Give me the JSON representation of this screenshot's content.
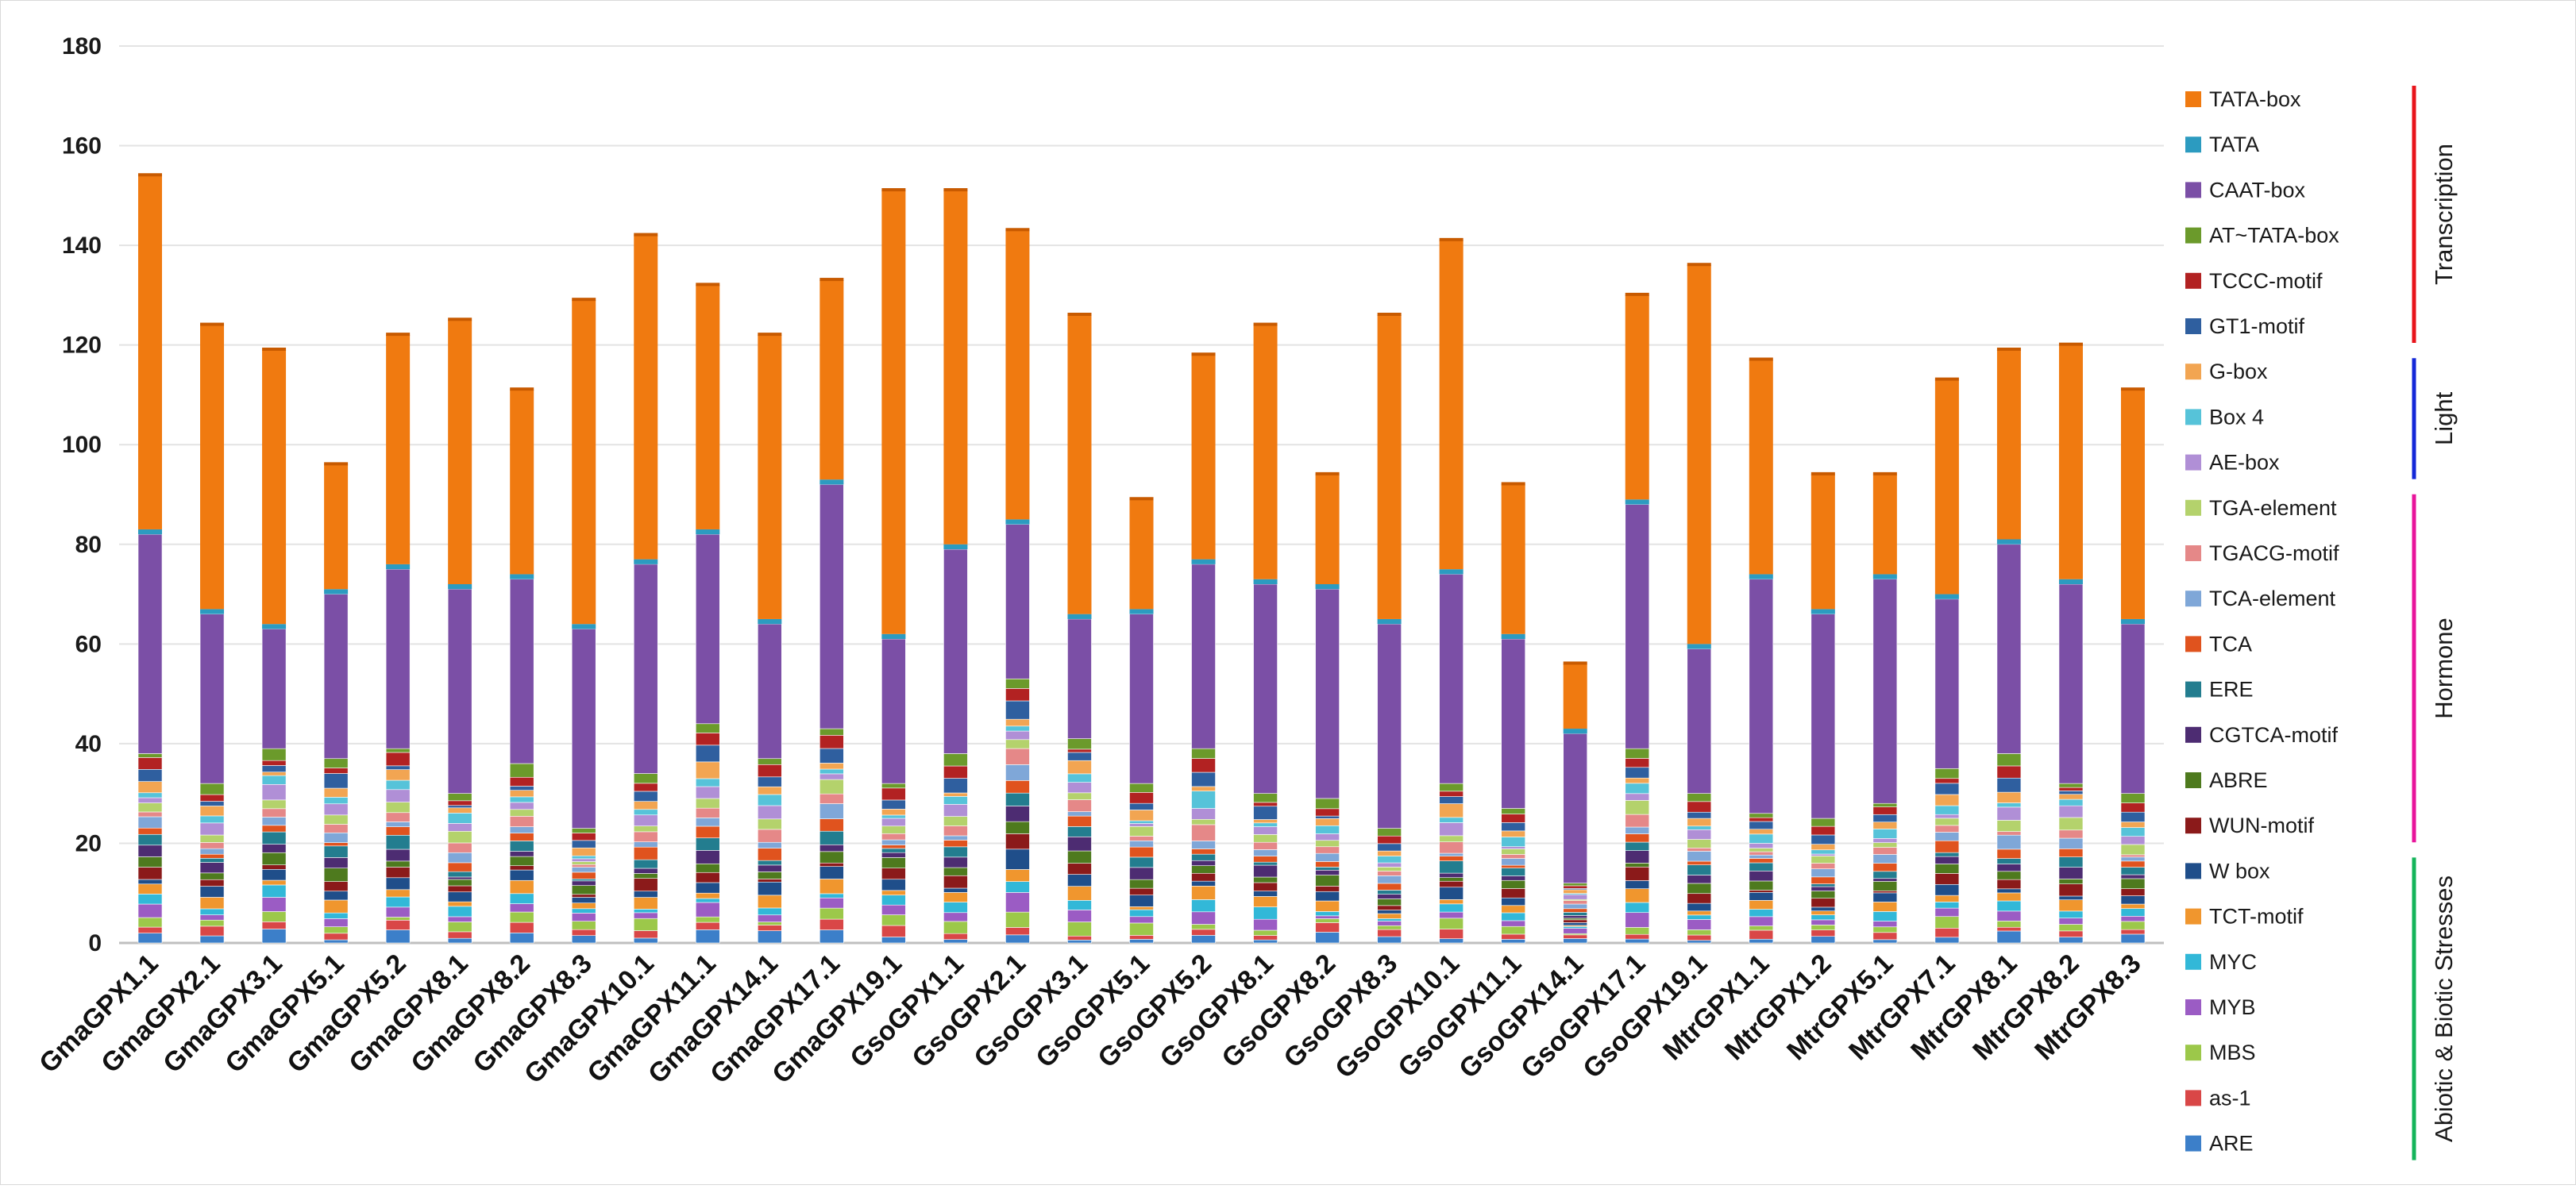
{
  "chart_data": {
    "type": "bar",
    "stacked": true,
    "ylim": [
      0,
      180
    ],
    "yticks": [
      0,
      20,
      40,
      60,
      80,
      100,
      120,
      140,
      160,
      180
    ],
    "categories": [
      "GmaGPX1.1",
      "GmaGPX2.1",
      "GmaGPX3.1",
      "GmaGPX5.1",
      "GmaGPX5.2",
      "GmaGPX8.1",
      "GmaGPX8.2",
      "GmaGPX8.3",
      "GmaGPX10.1",
      "GmaGPX11.1",
      "GmaGPX14.1",
      "GmaGPX17.1",
      "GmaGPX19.1",
      "GsoGPX1.1",
      "GsoGPX2.1",
      "GsoGPX3.1",
      "GsoGPX5.1",
      "GsoGPX5.2",
      "GsoGPX8.1",
      "GsoGPX8.2",
      "GsoGPX8.3",
      "GsoGPX10.1",
      "GsoGPX11.1",
      "GsoGPX14.1",
      "GsoGPX17.1",
      "GsoGPX19.1",
      "MtrGPX1.1",
      "MtrGPX1.2",
      "MtrGPX5.1",
      "MtrGPX7.1",
      "MtrGPX8.1",
      "MtrGPX8.2",
      "MtrGPX8.3"
    ],
    "totals": [
      154,
      124,
      119,
      96,
      122,
      125,
      111,
      129,
      142,
      132,
      122,
      133,
      151,
      151,
      143,
      126,
      89,
      118,
      124,
      94,
      126,
      141,
      92,
      56,
      130,
      136,
      117,
      94,
      94,
      113,
      119,
      120,
      111
    ],
    "caat_tops": [
      83,
      67,
      64,
      71,
      76,
      72,
      74,
      64,
      77,
      83,
      65,
      93,
      62,
      80,
      85,
      66,
      67,
      77,
      73,
      72,
      65,
      75,
      62,
      43,
      89,
      60,
      74,
      67,
      74,
      70,
      81,
      73,
      65
    ],
    "caat_bottoms": [
      38,
      32,
      39,
      37,
      39,
      30,
      36,
      23,
      34,
      44,
      37,
      43,
      32,
      38,
      53,
      41,
      32,
      39,
      30,
      29,
      23,
      32,
      27,
      12,
      39,
      30,
      26,
      25,
      28,
      35,
      38,
      32,
      30
    ],
    "series": [
      {
        "name": "TATA-box",
        "color": "#f07a10"
      },
      {
        "name": "TATA",
        "color": "#2c9bc0"
      },
      {
        "name": "CAAT-box",
        "color": "#7b4fa6"
      },
      {
        "name": "AT~TATA-box",
        "color": "#6b9a2b"
      },
      {
        "name": "TCCC-motif",
        "color": "#b22222"
      },
      {
        "name": "GT1-motif",
        "color": "#2f5f9f"
      },
      {
        "name": "G-box",
        "color": "#f2a552"
      },
      {
        "name": "Box 4",
        "color": "#56c3d9"
      },
      {
        "name": "AE-box",
        "color": "#b08fd6"
      },
      {
        "name": "TGA-element",
        "color": "#b4d26c"
      },
      {
        "name": "TGACG-motif",
        "color": "#e58888"
      },
      {
        "name": "TCA-element",
        "color": "#7fa7d8"
      },
      {
        "name": "TCA",
        "color": "#e0531e"
      },
      {
        "name": "ERE",
        "color": "#237d8f"
      },
      {
        "name": "CGTCA-motif",
        "color": "#4d2c72"
      },
      {
        "name": "ABRE",
        "color": "#4e7a1e"
      },
      {
        "name": "WUN-motif",
        "color": "#8b1a1a"
      },
      {
        "name": "W box",
        "color": "#1f4e8a"
      },
      {
        "name": "TCT-motif",
        "color": "#f0962e"
      },
      {
        "name": "MYC",
        "color": "#32b8d8"
      },
      {
        "name": "MYB",
        "color": "#9b5cc4"
      },
      {
        "name": "MBS",
        "color": "#9cc84a"
      },
      {
        "name": "as-1",
        "color": "#d94747"
      },
      {
        "name": "ARE",
        "color": "#3c7fc9"
      }
    ],
    "groups": [
      {
        "name": "Transcription",
        "color": "#e8141b",
        "from": 0,
        "to": 5
      },
      {
        "name": "Light",
        "color": "#1428d8",
        "from": 6,
        "to": 8
      },
      {
        "name": "Hormone",
        "color": "#e8149b",
        "from": 9,
        "to": 16
      },
      {
        "name": "Abiotic & Biotic Stresses",
        "color": "#14b45a",
        "from": 17,
        "to": 23
      }
    ]
  }
}
